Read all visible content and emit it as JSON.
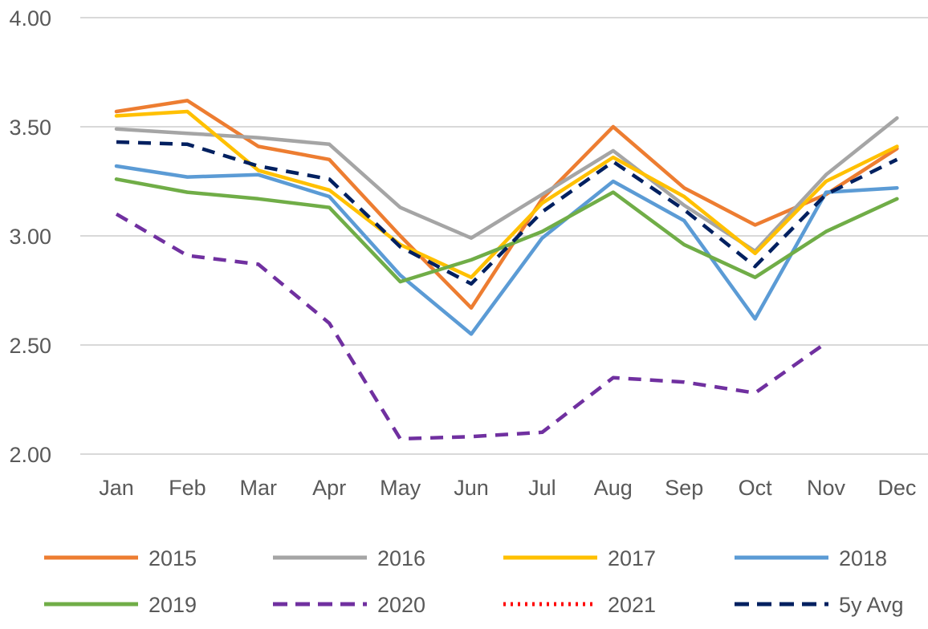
{
  "chart_data": {
    "type": "line",
    "title": "",
    "xlabel": "",
    "ylabel": "",
    "categories": [
      "Jan",
      "Feb",
      "Mar",
      "Apr",
      "May",
      "Jun",
      "Jul",
      "Aug",
      "Sep",
      "Oct",
      "Nov",
      "Dec"
    ],
    "ylim": [
      2.0,
      4.0
    ],
    "yticks": [
      "2.00",
      "2.50",
      "3.00",
      "3.50",
      "4.00"
    ],
    "grid": true,
    "legend_position": "bottom",
    "series": [
      {
        "name": "2015",
        "color": "#ED7D31",
        "dash": "solid",
        "values": [
          3.57,
          3.62,
          3.41,
          3.35,
          3.0,
          2.67,
          3.17,
          3.5,
          3.22,
          3.05,
          3.19,
          3.4
        ]
      },
      {
        "name": "2016",
        "color": "#A5A5A5",
        "dash": "solid",
        "values": [
          3.49,
          3.47,
          3.45,
          3.42,
          3.13,
          2.99,
          3.19,
          3.39,
          3.14,
          2.93,
          3.28,
          3.54
        ]
      },
      {
        "name": "2017",
        "color": "#FFC000",
        "dash": "solid",
        "values": [
          3.55,
          3.57,
          3.3,
          3.21,
          2.96,
          2.81,
          3.15,
          3.36,
          3.18,
          2.92,
          3.25,
          3.41
        ]
      },
      {
        "name": "2018",
        "color": "#5B9BD5",
        "dash": "solid",
        "values": [
          3.32,
          3.27,
          3.28,
          3.18,
          2.82,
          2.55,
          2.99,
          3.25,
          3.07,
          2.62,
          3.2,
          3.22
        ]
      },
      {
        "name": "2019",
        "color": "#70AD47",
        "dash": "solid",
        "values": [
          3.26,
          3.2,
          3.17,
          3.13,
          2.79,
          2.89,
          3.02,
          3.2,
          2.96,
          2.81,
          3.02,
          3.17
        ]
      },
      {
        "name": "2020",
        "color": "#7030A0",
        "dash": "dashed",
        "values": [
          3.1,
          2.91,
          2.87,
          2.6,
          2.07,
          2.08,
          2.1,
          2.35,
          2.33,
          2.28,
          2.51,
          null
        ]
      },
      {
        "name": "2021",
        "color": "#FF0000",
        "dash": "dotted",
        "values": [
          null,
          null,
          null,
          null,
          null,
          null,
          null,
          null,
          null,
          null,
          null,
          null
        ]
      },
      {
        "name": "5y Avg",
        "color": "#002060",
        "dash": "dashed",
        "values": [
          3.43,
          3.42,
          3.32,
          3.26,
          2.95,
          2.78,
          3.11,
          3.34,
          3.12,
          2.86,
          3.19,
          3.35
        ]
      }
    ]
  }
}
